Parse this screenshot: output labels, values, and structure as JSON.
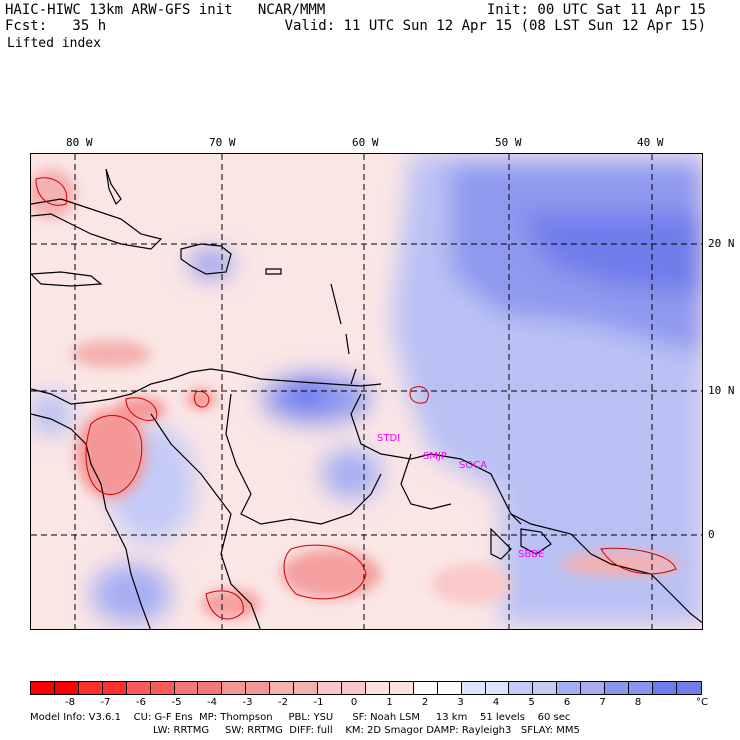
{
  "header": {
    "title_left": "HAIC-HIWC 13km ARW-GFS init   NCAR/MMM",
    "init": "Init: 00 UTC Sat 11 Apr 15",
    "fcst": "Fcst:   35 h",
    "valid": "Valid: 11 UTC Sun 12 Apr 15 (08 LST Sun 12 Apr 15)",
    "field": "Lifted index"
  },
  "map": {
    "lon_labels": [
      "80 W",
      "70 W",
      "60 W",
      "50 W",
      "40 W"
    ],
    "lat_labels": [
      "20 N",
      "10 N",
      "0"
    ],
    "stations": [
      "STDI",
      "SMJP",
      "SOCA",
      "SBBE"
    ],
    "colors": {
      "coast": "#000000",
      "contour": "#cc0000",
      "station": "#ff00ff"
    }
  },
  "colorbar": {
    "labels": [
      "-8",
      "-7",
      "-6",
      "-5",
      "-4",
      "-3",
      "-2",
      "-1",
      "0",
      "1",
      "2",
      "3",
      "4",
      "5",
      "6",
      "7",
      "8"
    ],
    "unit": "°C",
    "colors": [
      "#ff0000",
      "#ff3030",
      "#ff5a5a",
      "#f57878",
      "#f59696",
      "#f5b0b0",
      "#fac8c8",
      "#fde0e0",
      "#ffffff",
      "#e0e4fc",
      "#c4cbf7",
      "#a6aef3",
      "#8c96ef",
      "#6e7cee",
      "#5060ee",
      "#3345f2",
      "#1020ff"
    ]
  },
  "footer": {
    "line1": "Model Info: V3.6.1    CU: G-F Ens  MP: Thompson     PBL: YSU      SF: Noah LSM     13 km    51 levels    60 sec",
    "line2": "LW: RRTMG     SW: RRTMG  DIFF: full    KM: 2D Smagor DAMP: Rayleigh3   SFLAY: MM5"
  }
}
